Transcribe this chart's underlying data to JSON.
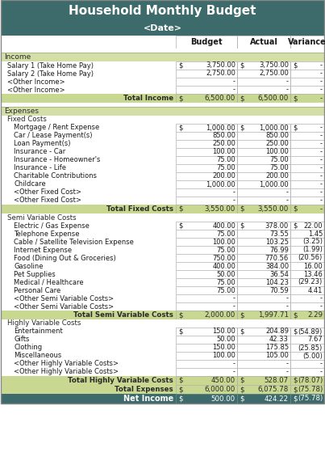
{
  "title": "Household Monthly Budget",
  "subtitle": "<Date>",
  "header_bg": "#3d6b6b",
  "header_fg": "#ffffff",
  "section_bg": "#d4dfa8",
  "total_bg": "#c8d890",
  "net_income_bg": "#3d6b6b",
  "net_income_fg": "#ffffff",
  "border_color": "#b0b0b0",
  "fig_w": 403,
  "fig_h": 575,
  "rows": [
    {
      "type": "section",
      "label": "Income",
      "indent": 0
    },
    {
      "type": "data",
      "label": "Salary 1 (Take Home Pay)",
      "budget": "3,750.00",
      "actual": "3,750.00",
      "variance": "-",
      "indent": 1,
      "dollar_b": true,
      "dollar_a": true,
      "dollar_v": true
    },
    {
      "type": "data",
      "label": "Salary 2 (Take Home Pay)",
      "budget": "2,750.00",
      "actual": "2,750.00",
      "variance": "-",
      "indent": 1,
      "dollar_b": false,
      "dollar_a": false,
      "dollar_v": false
    },
    {
      "type": "data",
      "label": "<Other Income>",
      "budget": "-",
      "actual": "-",
      "variance": "-",
      "indent": 1,
      "dollar_b": false,
      "dollar_a": false,
      "dollar_v": false
    },
    {
      "type": "data",
      "label": "<Other Income>",
      "budget": "-",
      "actual": "-",
      "variance": "-",
      "indent": 1,
      "dollar_b": false,
      "dollar_a": false,
      "dollar_v": false
    },
    {
      "type": "total",
      "label": "Total Income",
      "budget": "6,500.00",
      "actual": "6,500.00",
      "variance": "-",
      "dollar_b": true,
      "dollar_a": true,
      "dollar_v": true
    },
    {
      "type": "blank"
    },
    {
      "type": "section",
      "label": "Expenses",
      "indent": 0
    },
    {
      "type": "sub",
      "label": "Fixed Costs",
      "indent": 1
    },
    {
      "type": "data",
      "label": "Mortgage / Rent Expense",
      "budget": "1,000.00",
      "actual": "1,000.00",
      "variance": "-",
      "indent": 2,
      "dollar_b": true,
      "dollar_a": true,
      "dollar_v": true
    },
    {
      "type": "data",
      "label": "Car / Lease Payment(s)",
      "budget": "850.00",
      "actual": "850.00",
      "variance": "-",
      "indent": 2,
      "dollar_b": false,
      "dollar_a": false,
      "dollar_v": false
    },
    {
      "type": "data",
      "label": "Loan Payment(s)",
      "budget": "250.00",
      "actual": "250.00",
      "variance": "-",
      "indent": 2,
      "dollar_b": false,
      "dollar_a": false,
      "dollar_v": false
    },
    {
      "type": "data",
      "label": "Insurance - Car",
      "budget": "100.00",
      "actual": "100.00",
      "variance": "-",
      "indent": 2,
      "dollar_b": false,
      "dollar_a": false,
      "dollar_v": false
    },
    {
      "type": "data",
      "label": "Insurance - Homeowner's",
      "budget": "75.00",
      "actual": "75.00",
      "variance": "-",
      "indent": 2,
      "dollar_b": false,
      "dollar_a": false,
      "dollar_v": false
    },
    {
      "type": "data",
      "label": "Insurance - Life",
      "budget": "75.00",
      "actual": "75.00",
      "variance": "-",
      "indent": 2,
      "dollar_b": false,
      "dollar_a": false,
      "dollar_v": false
    },
    {
      "type": "data",
      "label": "Charitable Contributions",
      "budget": "200.00",
      "actual": "200.00",
      "variance": "-",
      "indent": 2,
      "dollar_b": false,
      "dollar_a": false,
      "dollar_v": false
    },
    {
      "type": "data",
      "label": "Childcare",
      "budget": "1,000.00",
      "actual": "1,000.00",
      "variance": "-",
      "indent": 2,
      "dollar_b": false,
      "dollar_a": false,
      "dollar_v": false
    },
    {
      "type": "data",
      "label": "<Other Fixed Cost>",
      "budget": "-",
      "actual": "-",
      "variance": "-",
      "indent": 2,
      "dollar_b": false,
      "dollar_a": false,
      "dollar_v": false
    },
    {
      "type": "data",
      "label": "<Other Fixed Cost>",
      "budget": "-",
      "actual": "-",
      "variance": "-",
      "indent": 2,
      "dollar_b": false,
      "dollar_a": false,
      "dollar_v": false
    },
    {
      "type": "total",
      "label": "Total Fixed Costs",
      "budget": "3,550.00",
      "actual": "3,550.00",
      "variance": "-",
      "dollar_b": true,
      "dollar_a": true,
      "dollar_v": true
    },
    {
      "type": "sub",
      "label": "Semi Variable Costs",
      "indent": 1
    },
    {
      "type": "data",
      "label": "Electric / Gas Expense",
      "budget": "400.00",
      "actual": "378.00",
      "variance": "22.00",
      "indent": 2,
      "dollar_b": true,
      "dollar_a": true,
      "dollar_v": true
    },
    {
      "type": "data",
      "label": "Telephone Expense",
      "budget": "75.00",
      "actual": "73.55",
      "variance": "1.45",
      "indent": 2,
      "dollar_b": false,
      "dollar_a": false,
      "dollar_v": false
    },
    {
      "type": "data",
      "label": "Cable / Satellite Television Expense",
      "budget": "100.00",
      "actual": "103.25",
      "variance": "(3.25)",
      "indent": 2,
      "dollar_b": false,
      "dollar_a": false,
      "dollar_v": false
    },
    {
      "type": "data",
      "label": "Internet Expense",
      "budget": "75.00",
      "actual": "76.99",
      "variance": "(1.99)",
      "indent": 2,
      "dollar_b": false,
      "dollar_a": false,
      "dollar_v": false
    },
    {
      "type": "data",
      "label": "Food (Dining Out & Groceries)",
      "budget": "750.00",
      "actual": "770.56",
      "variance": "(20.56)",
      "indent": 2,
      "dollar_b": false,
      "dollar_a": false,
      "dollar_v": false
    },
    {
      "type": "data",
      "label": "Gasoline",
      "budget": "400.00",
      "actual": "384.00",
      "variance": "16.00",
      "indent": 2,
      "dollar_b": false,
      "dollar_a": false,
      "dollar_v": false
    },
    {
      "type": "data",
      "label": "Pet Supplies",
      "budget": "50.00",
      "actual": "36.54",
      "variance": "13.46",
      "indent": 2,
      "dollar_b": false,
      "dollar_a": false,
      "dollar_v": false
    },
    {
      "type": "data",
      "label": "Medical / Healthcare",
      "budget": "75.00",
      "actual": "104.23",
      "variance": "(29.23)",
      "indent": 2,
      "dollar_b": false,
      "dollar_a": false,
      "dollar_v": false
    },
    {
      "type": "data",
      "label": "Personal Care",
      "budget": "75.00",
      "actual": "70.59",
      "variance": "4.41",
      "indent": 2,
      "dollar_b": false,
      "dollar_a": false,
      "dollar_v": false
    },
    {
      "type": "data",
      "label": "<Other Semi Variable Costs>",
      "budget": "-",
      "actual": "-",
      "variance": "-",
      "indent": 2,
      "dollar_b": false,
      "dollar_a": false,
      "dollar_v": false
    },
    {
      "type": "data",
      "label": "<Other Semi Variable Costs>",
      "budget": "-",
      "actual": "-",
      "variance": "-",
      "indent": 2,
      "dollar_b": false,
      "dollar_a": false,
      "dollar_v": false
    },
    {
      "type": "total",
      "label": "Total Semi Variable Costs",
      "budget": "2,000.00",
      "actual": "1,997.71",
      "variance": "2.29",
      "dollar_b": true,
      "dollar_a": true,
      "dollar_v": true
    },
    {
      "type": "sub",
      "label": "Highly Variable Costs",
      "indent": 1
    },
    {
      "type": "data",
      "label": "Entertainment",
      "budget": "150.00",
      "actual": "204.89",
      "variance": "(54.89)",
      "indent": 2,
      "dollar_b": true,
      "dollar_a": true,
      "dollar_v": true
    },
    {
      "type": "data",
      "label": "Gifts",
      "budget": "50.00",
      "actual": "42.33",
      "variance": "7.67",
      "indent": 2,
      "dollar_b": false,
      "dollar_a": false,
      "dollar_v": false
    },
    {
      "type": "data",
      "label": "Clothing",
      "budget": "150.00",
      "actual": "175.85",
      "variance": "(25.85)",
      "indent": 2,
      "dollar_b": false,
      "dollar_a": false,
      "dollar_v": false
    },
    {
      "type": "data",
      "label": "Miscellaneous",
      "budget": "100.00",
      "actual": "105.00",
      "variance": "(5.00)",
      "indent": 2,
      "dollar_b": false,
      "dollar_a": false,
      "dollar_v": false
    },
    {
      "type": "data",
      "label": "<Other Highly Variable Costs>",
      "budget": "-",
      "actual": "-",
      "variance": "-",
      "indent": 2,
      "dollar_b": false,
      "dollar_a": false,
      "dollar_v": false
    },
    {
      "type": "data",
      "label": "<Other Highly Variable Costs>",
      "budget": "-",
      "actual": "-",
      "variance": "-",
      "indent": 2,
      "dollar_b": false,
      "dollar_a": false,
      "dollar_v": false
    },
    {
      "type": "total",
      "label": "Total Highly Variable Costs",
      "budget": "450.00",
      "actual": "528.07",
      "variance": "(78.07)",
      "dollar_b": true,
      "dollar_a": true,
      "dollar_v": true
    },
    {
      "type": "total",
      "label": "Total Expenses",
      "budget": "6,000.00",
      "actual": "6,075.78",
      "variance": "(75.78)",
      "dollar_b": true,
      "dollar_a": true,
      "dollar_v": true
    },
    {
      "type": "net",
      "label": "Net Income",
      "budget": "500.00",
      "actual": "424.22",
      "variance": "(75.78)",
      "dollar_b": true,
      "dollar_a": true,
      "dollar_v": true
    }
  ]
}
